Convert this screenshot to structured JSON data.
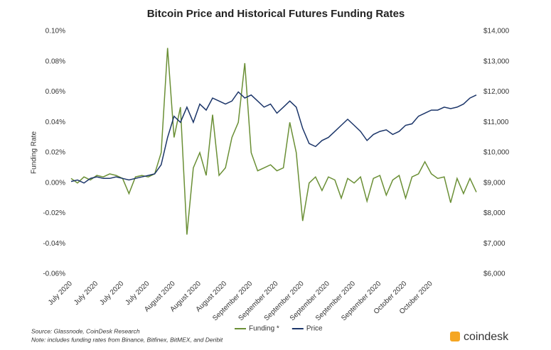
{
  "chart_data": {
    "type": "line",
    "title": "Bitcoin Price and Historical Futures Funding Rates",
    "y_label": "Funding Rate",
    "source": "Source: Glassnode, CoinDesk Research",
    "note": "Note: includes funding rates from Binance, Bitfinex, BitMEX, and Deribit",
    "brand": "coindesk",
    "categories": [
      "July 2020",
      null,
      null,
      null,
      "July 2020",
      null,
      null,
      null,
      "July 2020",
      null,
      null,
      null,
      "July 2020",
      null,
      null,
      null,
      "August 2020",
      null,
      null,
      null,
      "August 2020",
      null,
      null,
      null,
      "August 2020",
      null,
      null,
      null,
      "September 2020",
      null,
      null,
      null,
      "September 2020",
      null,
      null,
      null,
      "September 2020",
      null,
      null,
      null,
      "September 2020",
      null,
      null,
      null,
      "September 2020",
      null,
      null,
      null,
      "September 2020",
      null,
      null,
      null,
      "October 2020",
      null,
      null,
      null,
      "October 2020",
      null,
      null,
      null,
      null,
      null,
      null,
      null
    ],
    "series": [
      {
        "name": "Funding *",
        "color": "#6a8f35",
        "axis": "y",
        "values": [
          0.003,
          0.0,
          0.004,
          0.002,
          0.005,
          0.004,
          0.006,
          0.005,
          0.003,
          -0.007,
          0.004,
          0.005,
          0.004,
          0.006,
          0.02,
          0.089,
          0.03,
          0.05,
          -0.034,
          0.01,
          0.02,
          0.005,
          0.045,
          0.005,
          0.01,
          0.03,
          0.04,
          0.079,
          0.02,
          0.008,
          0.01,
          0.012,
          0.008,
          0.01,
          0.04,
          0.02,
          -0.025,
          0.0,
          0.004,
          -0.005,
          0.004,
          0.002,
          -0.01,
          0.003,
          0.0,
          0.004,
          -0.012,
          0.003,
          0.005,
          -0.008,
          0.002,
          0.005,
          -0.01,
          0.004,
          0.006,
          0.014,
          0.006,
          0.003,
          0.004,
          -0.013,
          0.003,
          -0.007,
          0.003,
          -0.006
        ]
      },
      {
        "name": "Price",
        "color": "#1b3569",
        "axis": "y2",
        "values": [
          9050,
          9100,
          9000,
          9150,
          9200,
          9150,
          9150,
          9200,
          9150,
          9100,
          9150,
          9200,
          9250,
          9300,
          9600,
          10500,
          11200,
          11000,
          11500,
          11000,
          11600,
          11400,
          11800,
          11700,
          11600,
          11700,
          12000,
          11800,
          11900,
          11700,
          11500,
          11600,
          11300,
          11500,
          11700,
          11500,
          10800,
          10300,
          10200,
          10400,
          10500,
          10700,
          10900,
          11100,
          10900,
          10700,
          10400,
          10600,
          10700,
          10750,
          10600,
          10700,
          10900,
          10950,
          11200,
          11300,
          11400,
          11400,
          11500,
          11450,
          11500,
          11600,
          11800,
          11900
        ]
      }
    ],
    "ylim": [
      -0.06,
      0.1
    ],
    "yticks": [
      {
        "value": 0.1,
        "label": "0.10%"
      },
      {
        "value": 0.08,
        "label": "0.08%"
      },
      {
        "value": 0.06,
        "label": "0.06%"
      },
      {
        "value": 0.04,
        "label": "0.04%"
      },
      {
        "value": 0.02,
        "label": "0.02%"
      },
      {
        "value": 0.0,
        "label": "0.00%"
      },
      {
        "value": -0.02,
        "label": "-0.02%"
      },
      {
        "value": -0.04,
        "label": "-0.04%"
      },
      {
        "value": -0.06,
        "label": "-0.06%"
      }
    ],
    "y2lim": [
      6000,
      14000
    ],
    "y2ticks": [
      {
        "value": 14000,
        "label": "$14,000"
      },
      {
        "value": 13000,
        "label": "$13,000"
      },
      {
        "value": 12000,
        "label": "$12,000"
      },
      {
        "value": 11000,
        "label": "$11,000"
      },
      {
        "value": 10000,
        "label": "$10,000"
      },
      {
        "value": 9000,
        "label": "$9,000"
      },
      {
        "value": 8000,
        "label": "$8,000"
      },
      {
        "value": 7000,
        "label": "$7,000"
      },
      {
        "value": 6000,
        "label": "$6,000"
      }
    ]
  }
}
